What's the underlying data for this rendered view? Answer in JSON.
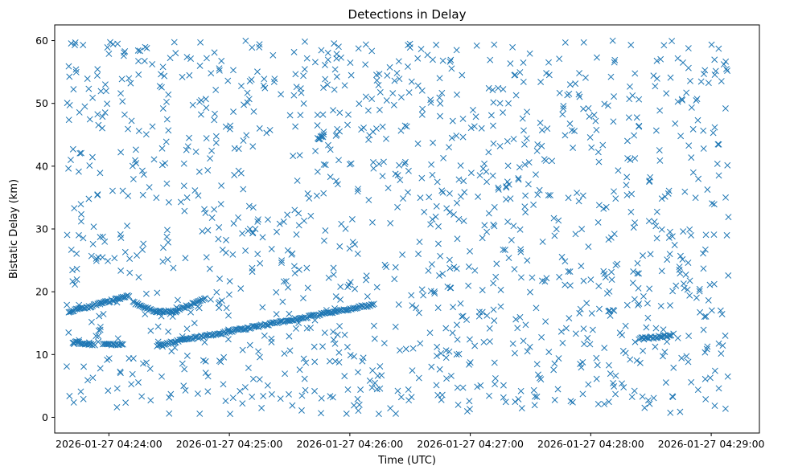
{
  "chart_data": {
    "type": "scatter",
    "title": "Detections in Delay",
    "xlabel": "Time (UTC)",
    "ylabel": "Bistatic Delay (km)",
    "marker": "x",
    "color": "#1f77b4",
    "grid": false,
    "x_range_seconds_after_04_24": [
      -27,
      324
    ],
    "ylim": [
      -2.5,
      62.5
    ],
    "x_ticks": [
      {
        "label": "2026-01-27 04:24:00",
        "seconds": 0
      },
      {
        "label": "2026-01-27 04:25:00",
        "seconds": 60
      },
      {
        "label": "2026-01-27 04:26:00",
        "seconds": 120
      },
      {
        "label": "2026-01-27 04:27:00",
        "seconds": 180
      },
      {
        "label": "2026-01-27 04:28:00",
        "seconds": 240
      },
      {
        "label": "2026-01-27 04:29:00",
        "seconds": 300
      }
    ],
    "y_ticks": [
      0,
      10,
      20,
      30,
      40,
      50,
      60
    ],
    "series": [
      {
        "name": "",
        "tracks": [
          {
            "x": [
              -20,
              10
            ],
            "y": [
              16.8,
              19.3
            ]
          },
          {
            "x": [
              12,
              24
            ],
            "y": [
              18.3,
              16.8
            ]
          },
          {
            "x": [
              24,
              34
            ],
            "y": [
              16.8,
              16.9
            ]
          },
          {
            "x": [
              34,
              48
            ],
            "y": [
              17.0,
              19.0
            ]
          },
          {
            "x": [
              -18,
              -7
            ],
            "y": [
              12.0,
              11.6
            ]
          },
          {
            "x": [
              -3,
              7
            ],
            "y": [
              11.6,
              11.6
            ]
          },
          {
            "x": [
              24,
              132
            ],
            "y": [
              11.5,
              18.0
            ]
          },
          {
            "x": [
              104,
              107
            ],
            "y": [
              44.3,
              44.9
            ]
          },
          {
            "x": [
              264,
              280
            ],
            "y": [
              12.5,
              13.0
            ]
          }
        ],
        "sample_points": [
          {
            "x": -21,
            "y": 8.1
          },
          {
            "x": -20,
            "y": 55.9
          },
          {
            "x": -19,
            "y": 41.0
          },
          {
            "x": -17,
            "y": 59.3
          },
          {
            "x": -15,
            "y": 29.0
          },
          {
            "x": -14,
            "y": 4.1
          },
          {
            "x": -12,
            "y": 49.5
          },
          {
            "x": -10,
            "y": 34.8
          },
          {
            "x": -8,
            "y": 6.3
          },
          {
            "x": 0,
            "y": 57.9
          },
          {
            "x": 4,
            "y": 1.6
          },
          {
            "x": 15,
            "y": 45.6
          },
          {
            "x": 30,
            "y": 0.6
          },
          {
            "x": 56,
            "y": 36.9
          },
          {
            "x": 75,
            "y": 59.4
          },
          {
            "x": 96,
            "y": 1.1
          },
          {
            "x": 120,
            "y": 40.3
          },
          {
            "x": 150,
            "y": 58.9
          },
          {
            "x": 168,
            "y": 9.5
          },
          {
            "x": 199,
            "y": 50.0
          },
          {
            "x": 231,
            "y": 2.4
          },
          {
            "x": 260,
            "y": 59.3
          },
          {
            "x": 286,
            "y": 29.6
          },
          {
            "x": 301,
            "y": 45.3
          },
          {
            "x": 307,
            "y": 13.0
          },
          {
            "x": 308,
            "y": 55.2
          }
        ]
      }
    ]
  }
}
